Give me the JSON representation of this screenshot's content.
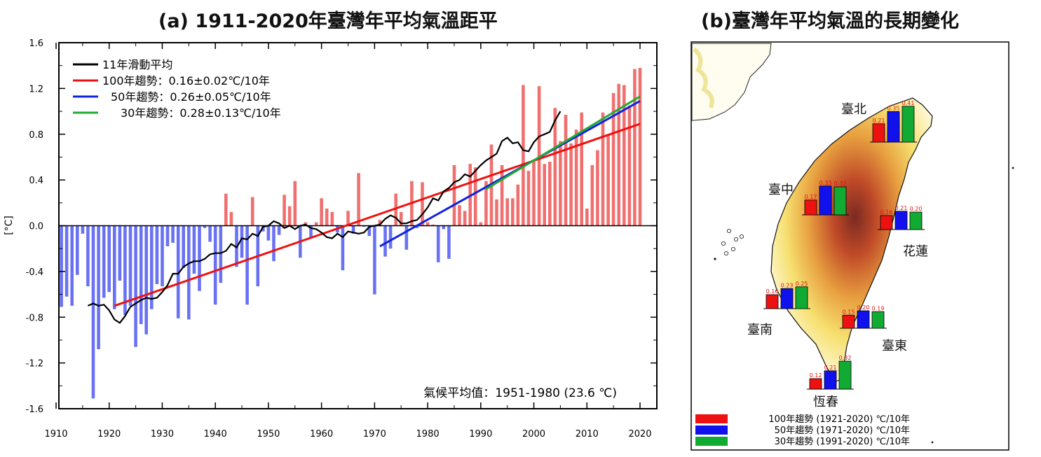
{
  "titles": {
    "a": "(a) 1911-2020年臺灣年平均氣溫距平",
    "b": "(b)臺灣年平均氣溫的長期變化"
  },
  "colors": {
    "pos_bar": "#f07070",
    "neg_bar": "#6a72f4",
    "moving": "#000000",
    "trend100": "#ee1111",
    "trend50": "#1122dd",
    "trend30": "#22aa33",
    "map_bar_red": "#ee1111",
    "map_bar_blue": "#1111ee",
    "map_bar_green": "#11aa33"
  },
  "chart_data": [
    {
      "type": "bar",
      "title": "(a) 1911-2020年臺灣年平均氣溫距平",
      "ylabel": "[°C]",
      "xlabel": "",
      "xlim": [
        1909,
        2021
      ],
      "ylim": [
        -1.6,
        1.6
      ],
      "xticks": [
        "1910",
        "1920",
        "1930",
        "1940",
        "1950",
        "1960",
        "1970",
        "1980",
        "1990",
        "2000",
        "2010",
        "2020"
      ],
      "yticks": [
        "-1.6",
        "-1.2",
        "-0.8",
        "-0.4",
        "0.0",
        "0.4",
        "0.8",
        "1.2",
        "1.6"
      ],
      "years_start": 1911,
      "anomalies": [
        -0.71,
        -0.62,
        -0.7,
        -0.43,
        -0.07,
        -0.53,
        -1.51,
        -1.08,
        -0.63,
        -0.58,
        -0.73,
        -0.48,
        -0.78,
        -0.7,
        -1.06,
        -0.86,
        -0.95,
        -0.73,
        -0.51,
        -0.53,
        -0.18,
        -0.15,
        -0.81,
        -0.37,
        -0.82,
        -0.42,
        -0.57,
        -0.02,
        -0.14,
        -0.69,
        -0.5,
        0.28,
        0.12,
        -0.36,
        -0.28,
        -0.69,
        0.25,
        -0.53,
        -0.05,
        -0.13,
        -0.31,
        -0.08,
        0.27,
        0.17,
        0.39,
        -0.28,
        0.03,
        -0.1,
        0.03,
        0.24,
        0.15,
        0.12,
        -0.06,
        -0.39,
        0.13,
        -0.07,
        0.46,
        -0.01,
        -0.09,
        -0.6,
        0.05,
        -0.27,
        -0.2,
        0.28,
        0.12,
        -0.21,
        0.39,
        -0.02,
        0.38,
        0.03,
        0.01,
        -0.32,
        -0.03,
        -0.29,
        0.53,
        0.18,
        0.13,
        0.54,
        0.51,
        0.03,
        0.39,
        0.71,
        0.23,
        0.53,
        0.24,
        0.24,
        0.36,
        1.23,
        0.48,
        0.56,
        1.22,
        0.54,
        0.56,
        1.03,
        0.74,
        0.97,
        0.72,
        0.84,
        0.99,
        0.15,
        0.53,
        0.66,
        0.99,
        0.8,
        1.16,
        1.24,
        1.23,
        1.05,
        1.37,
        1.38
      ],
      "moving_average": {
        "name": "11年滑動平均",
        "start_year": 1916,
        "values": [
          -0.7,
          -0.68,
          -0.7,
          -0.69,
          -0.74,
          -0.82,
          -0.85,
          -0.79,
          -0.71,
          -0.68,
          -0.65,
          -0.63,
          -0.64,
          -0.63,
          -0.58,
          -0.52,
          -0.42,
          -0.42,
          -0.36,
          -0.33,
          -0.31,
          -0.31,
          -0.29,
          -0.25,
          -0.24,
          -0.24,
          -0.22,
          -0.16,
          -0.19,
          -0.11,
          -0.12,
          -0.07,
          -0.09,
          -0.01,
          0.0,
          0.04,
          0.02,
          -0.02,
          0.0,
          -0.03,
          0.0,
          0.01,
          -0.02,
          -0.03,
          -0.06,
          -0.1,
          -0.11,
          -0.07,
          -0.1,
          -0.05,
          -0.06,
          -0.07,
          -0.06,
          -0.01,
          0.0,
          0.01,
          0.06,
          0.09,
          0.07,
          0.02,
          0.02,
          0.04,
          0.05,
          0.1,
          0.16,
          0.24,
          0.22,
          0.3,
          0.33,
          0.38,
          0.4,
          0.45,
          0.43,
          0.48,
          0.53,
          0.57,
          0.6,
          0.63,
          0.74,
          0.77,
          0.72,
          0.73,
          0.66,
          0.65,
          0.73,
          0.78,
          0.8,
          0.82,
          0.92,
          1.0
        ]
      },
      "series": [
        {
          "name": "100年趨勢",
          "slope_label": "0.16±0.02℃/10年",
          "x": [
            1921,
            2020
          ],
          "y": [
            -0.7,
            0.89
          ]
        },
        {
          "name": "50年趨勢",
          "slope_label": "0.26±0.05℃/10年",
          "x": [
            1971,
            2020
          ],
          "y": [
            -0.18,
            1.09
          ]
        },
        {
          "name": "30年趨勢",
          "slope_label": "0.28±0.13℃/10年",
          "x": [
            1991,
            2020
          ],
          "y": [
            0.32,
            1.13
          ]
        }
      ],
      "legend": [
        "11年滑動平均",
        "100年趨勢：0.16±0.02℃/10年",
        "50年趨勢：0.26±0.05℃/10年",
        "30年趨勢：0.28±0.13℃/10年"
      ],
      "legend_position": "top-left",
      "annotation": "氣候平均值：1951-1980 (23.6 ℃)"
    },
    {
      "type": "bar",
      "title": "(b)臺灣年平均氣溫的長期變化",
      "unit": "℃/10年",
      "categories": [
        "臺北",
        "臺中",
        "花蓮",
        "臺南",
        "臺東",
        "恆春"
      ],
      "series": [
        {
          "name": "100年趨勢 (1921-2020) ℃/10年",
          "values": [
            0.21,
            0.17,
            0.16,
            0.16,
            0.15,
            0.12
          ],
          "labels": [
            "0.21",
            "0.17",
            "0.16",
            "0.16",
            "0.15",
            "0.12"
          ]
        },
        {
          "name": "50年趨勢 (1971-2020) ℃/10年",
          "values": [
            0.35,
            0.33,
            0.21,
            0.23,
            0.2,
            0.21
          ],
          "labels": [
            "0.35",
            "0.33",
            "0.21",
            "0.23",
            "0.20",
            "0.21"
          ]
        },
        {
          "name": "30年趨勢 (1991-2020) ℃/10年",
          "values": [
            0.41,
            0.32,
            0.2,
            0.25,
            0.19,
            0.32
          ],
          "labels": [
            "0.41",
            "0.32",
            "0.20",
            "0.25",
            "0.19",
            "0.32"
          ]
        }
      ],
      "legend": [
        "100年趨勢 (1921-2020) ℃/10年",
        "50年趨勢 (1971-2020) ℃/10年",
        "30年趨勢 (1991-2020) ℃/10年"
      ],
      "legend_position": "bottom-left"
    }
  ]
}
